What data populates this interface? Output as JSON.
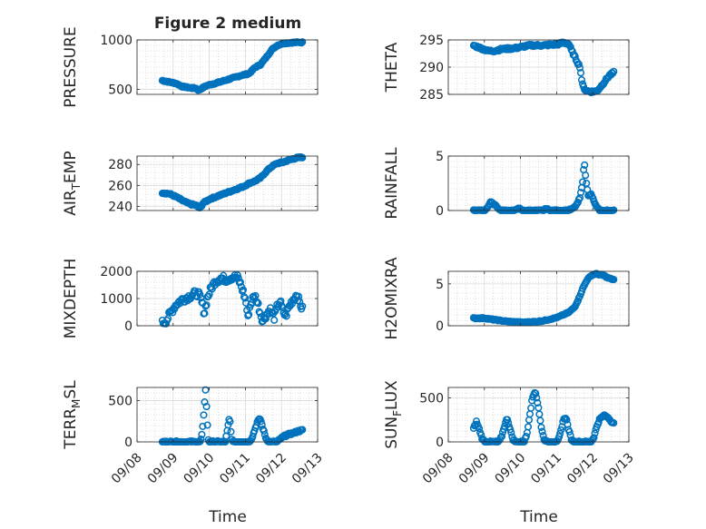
{
  "figure": {
    "title": "Figure 2 medium",
    "xlabel": "Time",
    "x_ticks": [
      "09/08",
      "09/09",
      "09/10",
      "09/11",
      "09/12",
      "09/13"
    ],
    "marker_color": "#0072BD",
    "grid": "major and minor, dotted minor"
  },
  "chart_data": [
    {
      "type": "scatter",
      "ylabel_parts": [
        "PRESSURE"
      ],
      "xlim": [
        "09/08",
        "09/13"
      ],
      "ylim": [
        450,
        1000
      ],
      "yticks": [
        500,
        1000
      ],
      "x_start": "09/08 17:00",
      "x_end": "09/12 14:00",
      "anchors": [
        [
          0,
          590
        ],
        [
          0.05,
          575
        ],
        [
          0.1,
          560
        ],
        [
          0.14,
          530
        ],
        [
          0.2,
          515
        ],
        [
          0.24,
          512
        ],
        [
          0.26,
          490
        ],
        [
          0.28,
          510
        ],
        [
          0.32,
          540
        ],
        [
          0.4,
          570
        ],
        [
          0.48,
          605
        ],
        [
          0.56,
          640
        ],
        [
          0.62,
          660
        ],
        [
          0.66,
          720
        ],
        [
          0.7,
          750
        ],
        [
          0.74,
          820
        ],
        [
          0.78,
          900
        ],
        [
          0.82,
          945
        ],
        [
          0.86,
          965
        ],
        [
          0.9,
          970
        ],
        [
          0.95,
          975
        ],
        [
          1,
          975
        ]
      ],
      "noise": 6
    },
    {
      "type": "scatter",
      "ylabel_parts": [
        "AIR",
        "T",
        "EMP"
      ],
      "xlim": [
        "09/08",
        "09/13"
      ],
      "ylim": [
        236,
        288
      ],
      "yticks": [
        240,
        260,
        280
      ],
      "x_start": "09/08 17:00",
      "x_end": "09/12 14:00",
      "anchors": [
        [
          0,
          253
        ],
        [
          0.05,
          252
        ],
        [
          0.1,
          249
        ],
        [
          0.15,
          245
        ],
        [
          0.2,
          242
        ],
        [
          0.24,
          241
        ],
        [
          0.27,
          238
        ],
        [
          0.29,
          243
        ],
        [
          0.34,
          247
        ],
        [
          0.4,
          250
        ],
        [
          0.46,
          253
        ],
        [
          0.52,
          256
        ],
        [
          0.58,
          259
        ],
        [
          0.62,
          262
        ],
        [
          0.66,
          264
        ],
        [
          0.7,
          267
        ],
        [
          0.74,
          273
        ],
        [
          0.78,
          278
        ],
        [
          0.82,
          281
        ],
        [
          0.86,
          282
        ],
        [
          0.9,
          284
        ],
        [
          0.95,
          286
        ],
        [
          1,
          287
        ]
      ],
      "noise": 0.7
    },
    {
      "type": "scatter",
      "ylabel_parts": [
        "MIXDEPTH"
      ],
      "xlim": [
        "09/08",
        "09/13"
      ],
      "ylim": [
        0,
        2000
      ],
      "yticks": [
        0,
        1000,
        2000
      ],
      "x_start": "09/08 17:00",
      "x_end": "09/12 14:00",
      "anchors": [
        [
          0,
          100
        ],
        [
          0.03,
          200
        ],
        [
          0.06,
          500
        ],
        [
          0.1,
          800
        ],
        [
          0.14,
          950
        ],
        [
          0.18,
          1050
        ],
        [
          0.22,
          1150
        ],
        [
          0.25,
          1200
        ],
        [
          0.27,
          1050
        ],
        [
          0.29,
          700
        ],
        [
          0.3,
          450
        ],
        [
          0.32,
          1000
        ],
        [
          0.35,
          1400
        ],
        [
          0.38,
          1650
        ],
        [
          0.42,
          1750
        ],
        [
          0.46,
          1700
        ],
        [
          0.5,
          1800
        ],
        [
          0.54,
          1750
        ],
        [
          0.56,
          1500
        ],
        [
          0.58,
          1200
        ],
        [
          0.6,
          800
        ],
        [
          0.61,
          250
        ],
        [
          0.62,
          600
        ],
        [
          0.64,
          950
        ],
        [
          0.66,
          1100
        ],
        [
          0.68,
          850
        ],
        [
          0.7,
          450
        ],
        [
          0.72,
          150
        ],
        [
          0.74,
          400
        ],
        [
          0.77,
          600
        ],
        [
          0.8,
          300
        ],
        [
          0.82,
          700
        ],
        [
          0.84,
          900
        ],
        [
          0.86,
          550
        ],
        [
          0.88,
          350
        ],
        [
          0.9,
          650
        ],
        [
          0.93,
          950
        ],
        [
          0.96,
          1150
        ],
        [
          0.98,
          850
        ],
        [
          1,
          600
        ]
      ],
      "noise": 130
    },
    {
      "type": "scatter",
      "ylabel_parts": [
        "TERR",
        "M",
        "SL"
      ],
      "xlim": [
        "09/08",
        "09/13"
      ],
      "ylim": [
        0,
        660
      ],
      "yticks": [
        0,
        500
      ],
      "x_start": "09/08 17:00",
      "x_end": "09/12 14:00",
      "anchors": [
        [
          0,
          0
        ],
        [
          0.27,
          0
        ],
        [
          0.28,
          50
        ],
        [
          0.29,
          200
        ],
        [
          0.3,
          450
        ],
        [
          0.31,
          650
        ],
        [
          0.32,
          250
        ],
        [
          0.33,
          0
        ],
        [
          0.45,
          0
        ],
        [
          0.46,
          100
        ],
        [
          0.47,
          200
        ],
        [
          0.48,
          300
        ],
        [
          0.49,
          120
        ],
        [
          0.5,
          0
        ],
        [
          0.62,
          0
        ],
        [
          0.64,
          50
        ],
        [
          0.66,
          150
        ],
        [
          0.68,
          250
        ],
        [
          0.7,
          280
        ],
        [
          0.72,
          150
        ],
        [
          0.74,
          40
        ],
        [
          0.76,
          0
        ],
        [
          0.82,
          0
        ],
        [
          0.86,
          60
        ],
        [
          0.9,
          90
        ],
        [
          0.94,
          110
        ],
        [
          0.97,
          130
        ],
        [
          1,
          140
        ]
      ],
      "noise": 12
    },
    {
      "type": "scatter",
      "ylabel_parts": [
        "THETA"
      ],
      "xlim": [
        "09/08",
        "09/13"
      ],
      "ylim": [
        285,
        295
      ],
      "yticks": [
        285,
        290,
        295
      ],
      "x_start": "09/08 17:00",
      "x_end": "09/12 14:00",
      "anchors": [
        [
          0,
          294
        ],
        [
          0.05,
          293.5
        ],
        [
          0.1,
          293
        ],
        [
          0.15,
          293
        ],
        [
          0.2,
          293.3
        ],
        [
          0.3,
          293.5
        ],
        [
          0.4,
          294
        ],
        [
          0.5,
          294
        ],
        [
          0.6,
          294.2
        ],
        [
          0.64,
          294.5
        ],
        [
          0.68,
          294.3
        ],
        [
          0.7,
          293
        ],
        [
          0.72,
          292
        ],
        [
          0.74,
          291
        ],
        [
          0.76,
          290
        ],
        [
          0.77,
          288
        ],
        [
          0.78,
          286.5
        ],
        [
          0.8,
          285.7
        ],
        [
          0.84,
          285.5
        ],
        [
          0.88,
          285.6
        ],
        [
          0.91,
          286.5
        ],
        [
          0.94,
          287.5
        ],
        [
          0.97,
          288.5
        ],
        [
          1,
          289
        ]
      ],
      "noise": 0.2
    },
    {
      "type": "scatter",
      "ylabel_parts": [
        "RAINFALL"
      ],
      "xlim": [
        "09/08",
        "09/13"
      ],
      "ylim": [
        0,
        5
      ],
      "yticks": [
        0,
        5
      ],
      "x_start": "09/08 17:00",
      "x_end": "09/12 14:00",
      "anchors": [
        [
          0,
          0
        ],
        [
          0.08,
          0
        ],
        [
          0.1,
          0.3
        ],
        [
          0.12,
          0.8
        ],
        [
          0.14,
          0.6
        ],
        [
          0.16,
          0.5
        ],
        [
          0.18,
          0.1
        ],
        [
          0.2,
          0
        ],
        [
          0.3,
          0
        ],
        [
          0.32,
          0.3
        ],
        [
          0.34,
          0
        ],
        [
          0.5,
          0
        ],
        [
          0.52,
          0.2
        ],
        [
          0.54,
          0
        ],
        [
          0.66,
          0
        ],
        [
          0.7,
          0.1
        ],
        [
          0.72,
          0.3
        ],
        [
          0.74,
          0.6
        ],
        [
          0.76,
          1.2
        ],
        [
          0.78,
          2.8
        ],
        [
          0.79,
          4.5
        ],
        [
          0.8,
          3.0
        ],
        [
          0.82,
          1.3
        ],
        [
          0.84,
          1.5
        ],
        [
          0.86,
          0.8
        ],
        [
          0.88,
          0.3
        ],
        [
          0.9,
          0
        ],
        [
          1,
          0
        ]
      ],
      "noise": 0.06
    },
    {
      "type": "scatter",
      "ylabel_parts": [
        "H2OMIXRA"
      ],
      "xlim": [
        "09/08",
        "09/13"
      ],
      "ylim": [
        0,
        6.5
      ],
      "yticks": [
        0,
        5
      ],
      "x_start": "09/08 17:00",
      "x_end": "09/12 14:00",
      "anchors": [
        [
          0,
          0.9
        ],
        [
          0.08,
          0.9
        ],
        [
          0.15,
          0.7
        ],
        [
          0.25,
          0.5
        ],
        [
          0.35,
          0.4
        ],
        [
          0.45,
          0.5
        ],
        [
          0.5,
          0.6
        ],
        [
          0.55,
          0.8
        ],
        [
          0.6,
          1.0
        ],
        [
          0.64,
          1.3
        ],
        [
          0.68,
          1.6
        ],
        [
          0.72,
          2.2
        ],
        [
          0.75,
          3.2
        ],
        [
          0.78,
          4.5
        ],
        [
          0.81,
          5.5
        ],
        [
          0.84,
          6.0
        ],
        [
          0.87,
          6.2
        ],
        [
          0.9,
          6.1
        ],
        [
          0.93,
          6.0
        ],
        [
          0.96,
          5.7
        ],
        [
          1,
          5.5
        ]
      ],
      "noise": 0.06
    },
    {
      "type": "scatter",
      "ylabel_parts": [
        "SUN",
        "F",
        "LUX"
      ],
      "xlim": [
        "09/08",
        "09/13"
      ],
      "ylim": [
        0,
        620
      ],
      "yticks": [
        0,
        500
      ],
      "x_start": "09/08 17:00",
      "x_end": "09/12 14:00",
      "anchors": [
        [
          0,
          150
        ],
        [
          0.02,
          230
        ],
        [
          0.04,
          150
        ],
        [
          0.06,
          40
        ],
        [
          0.08,
          0
        ],
        [
          0.18,
          0
        ],
        [
          0.2,
          60
        ],
        [
          0.22,
          180
        ],
        [
          0.24,
          270
        ],
        [
          0.26,
          150
        ],
        [
          0.28,
          30
        ],
        [
          0.3,
          0
        ],
        [
          0.36,
          0
        ],
        [
          0.38,
          80
        ],
        [
          0.4,
          300
        ],
        [
          0.42,
          500
        ],
        [
          0.44,
          580
        ],
        [
          0.46,
          420
        ],
        [
          0.48,
          200
        ],
        [
          0.5,
          40
        ],
        [
          0.52,
          0
        ],
        [
          0.6,
          0
        ],
        [
          0.62,
          100
        ],
        [
          0.64,
          250
        ],
        [
          0.66,
          280
        ],
        [
          0.68,
          130
        ],
        [
          0.7,
          20
        ],
        [
          0.72,
          0
        ],
        [
          0.84,
          0
        ],
        [
          0.86,
          60
        ],
        [
          0.88,
          180
        ],
        [
          0.9,
          260
        ],
        [
          0.93,
          300
        ],
        [
          0.96,
          280
        ],
        [
          0.98,
          240
        ],
        [
          1,
          210
        ]
      ],
      "noise": 10
    }
  ]
}
